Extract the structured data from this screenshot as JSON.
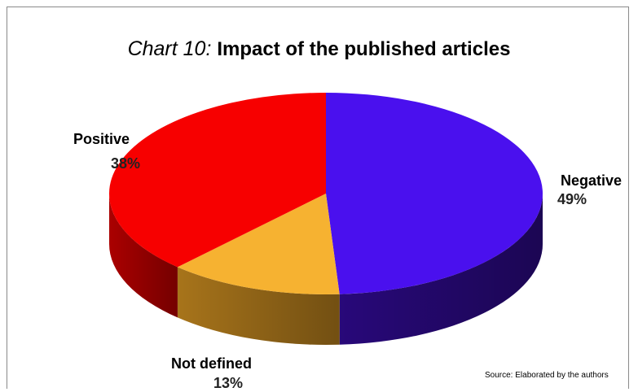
{
  "chart_data": {
    "type": "pie",
    "title_prefix": "Chart 10:",
    "title": "Impact of the published articles",
    "slices": [
      {
        "label": "Negative",
        "value": 49,
        "value_label": "49%",
        "color": "#4a10ee",
        "side_color": "#2a0980"
      },
      {
        "label": "Not defined",
        "value": 13,
        "value_label": "13%",
        "color": "#f6b231",
        "side_color": "#b07a1c"
      },
      {
        "label": "Positive",
        "value": 38,
        "value_label": "38%",
        "color": "#f70000",
        "side_color": "#b30000"
      }
    ],
    "source": "Source: Elaborated by the authors"
  }
}
